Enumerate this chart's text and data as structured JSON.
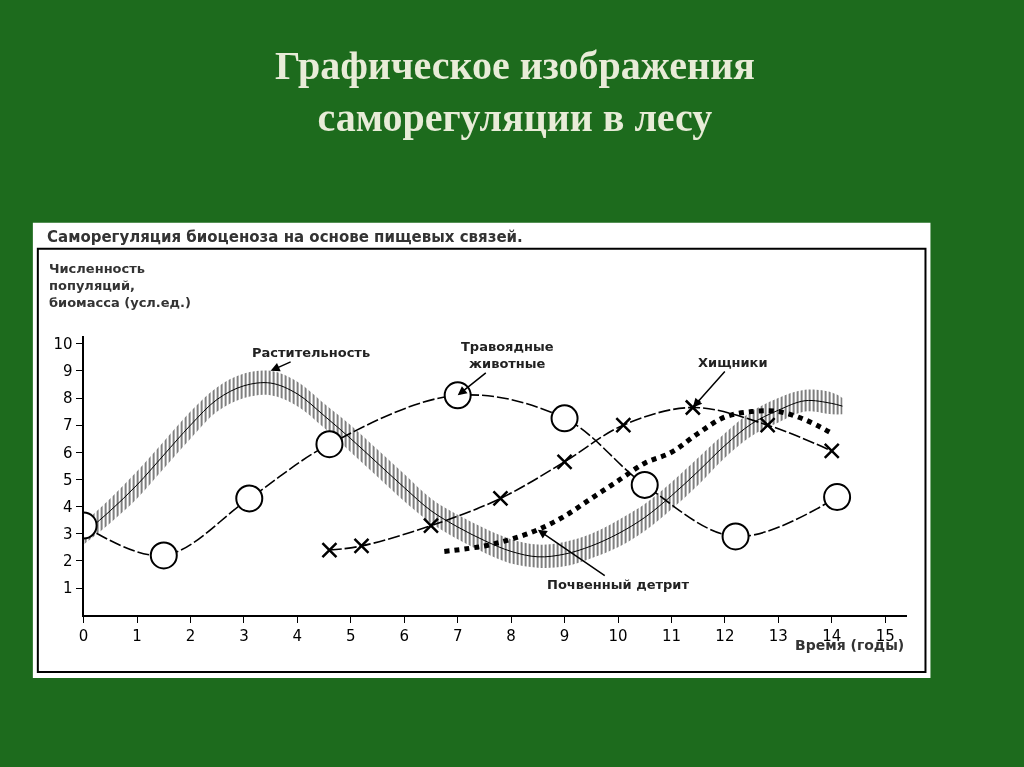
{
  "chart_data": {
    "type": "line",
    "title": "Графическое изображения саморегуляции в лесу",
    "subtitle": "Саморегуляция биоценоза на основе пищевых связей.",
    "xlabel": "Время (годы)",
    "ylabel": "Численность популяций, биомасса (усл.ед.)",
    "xlim": [
      0,
      15.4
    ],
    "xticks": [
      0,
      1,
      2,
      3,
      4,
      5,
      6,
      7,
      8,
      9,
      10,
      11,
      12,
      13,
      14,
      15
    ],
    "ylim": [
      0,
      10.3
    ],
    "yticks": [
      1,
      2,
      3,
      4,
      5,
      6,
      7,
      8,
      9,
      10
    ],
    "grid": false,
    "legend": false,
    "series": [
      {
        "name": "Растительность",
        "color": "#000000",
        "x": [
          0,
          0.5,
          1,
          1.5,
          2,
          2.5,
          3,
          3.5,
          4,
          4.5,
          5,
          5.5,
          6,
          6.5,
          7,
          7.5,
          8,
          8.5,
          9,
          9.5,
          10,
          10.5,
          11,
          11.5,
          12,
          12.5,
          13,
          13.5,
          14,
          14.2
        ],
        "lower": [
          2.6,
          3.4,
          4.3,
          5.4,
          6.5,
          7.5,
          8.0,
          8.1,
          7.7,
          6.9,
          6.0,
          5.1,
          4.2,
          3.4,
          2.8,
          2.3,
          1.9,
          1.75,
          1.8,
          2.1,
          2.5,
          3.1,
          3.9,
          4.8,
          5.8,
          6.6,
          7.1,
          7.5,
          7.4,
          7.4
        ],
        "upper": [
          3.4,
          4.3,
          5.3,
          6.4,
          7.5,
          8.4,
          8.9,
          9.0,
          8.6,
          7.8,
          7.0,
          6.1,
          5.2,
          4.3,
          3.7,
          3.2,
          2.8,
          2.6,
          2.7,
          3.0,
          3.5,
          4.1,
          4.9,
          5.8,
          6.7,
          7.5,
          8.0,
          8.3,
          8.2,
          8.0
        ],
        "values": [
          3.0,
          3.85,
          4.8,
          5.9,
          7.0,
          7.95,
          8.45,
          8.55,
          8.15,
          7.35,
          6.5,
          5.6,
          4.7,
          3.85,
          3.25,
          2.75,
          2.35,
          2.15,
          2.25,
          2.55,
          3.0,
          3.6,
          4.4,
          5.3,
          6.25,
          7.05,
          7.55,
          7.9,
          7.8,
          7.7
        ]
      },
      {
        "name": "Травоядные животные",
        "color": "#000000",
        "marker": "circle",
        "line_style": "dashed",
        "x": [
          0,
          1.5,
          3.1,
          4.6,
          7.0,
          9.0,
          10.5,
          12.2,
          14.1
        ],
        "values": [
          3.3,
          2.2,
          4.3,
          6.3,
          8.1,
          7.25,
          4.8,
          2.9,
          4.35
        ]
      },
      {
        "name": "Хищники",
        "color": "#000000",
        "marker": "cross",
        "line_style": "dashed",
        "x": [
          4.6,
          5.2,
          6.5,
          7.8,
          9.0,
          10.1,
          11.4,
          12.8,
          14.0
        ],
        "values": [
          2.4,
          2.55,
          3.3,
          4.3,
          5.65,
          7.0,
          7.65,
          7.0,
          6.05
        ]
      },
      {
        "name": "Почвенный детрит",
        "color": "#000000",
        "line_style": "dotted",
        "x": [
          6.75,
          7.5,
          8,
          8.5,
          9,
          9.5,
          10,
          10.5,
          11,
          11.5,
          12,
          12.5,
          13,
          13.5,
          14
        ],
        "values": [
          2.35,
          2.55,
          2.8,
          3.15,
          3.65,
          4.3,
          4.95,
          5.6,
          6.0,
          6.7,
          7.3,
          7.5,
          7.5,
          7.2,
          6.7
        ]
      }
    ]
  }
}
